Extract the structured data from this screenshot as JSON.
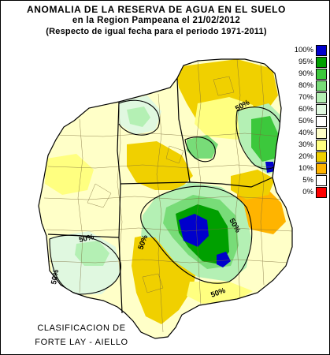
{
  "title": {
    "line1": "ANOMALIA DE LA RESERVA DE AGUA EN EL SUELO",
    "line2": "en la Region Pampeana el  21/02/2012",
    "line3": "(Respecto de igual fecha para el periodo 1971-2011)"
  },
  "legend": [
    {
      "label": "100%",
      "color": "#0000cc"
    },
    {
      "label": "95%",
      "color": "#00a000"
    },
    {
      "label": "90%",
      "color": "#3cc83c"
    },
    {
      "label": "80%",
      "color": "#78dc78"
    },
    {
      "label": "70%",
      "color": "#b4f0b4"
    },
    {
      "label": "60%",
      "color": "#e0f8e0"
    },
    {
      "label": "50%",
      "color": "#ffffff"
    },
    {
      "label": "40%",
      "color": "#ffffc8"
    },
    {
      "label": "30%",
      "color": "#ffff80"
    },
    {
      "label": "20%",
      "color": "#f0d000"
    },
    {
      "label": "10%",
      "color": "#ffb400"
    },
    {
      "label": "5%",
      "color": "#ffffff"
    },
    {
      "label": "0%",
      "color": "#ff0000"
    }
  ],
  "contour_labels": [
    "50%",
    "50%",
    "50%",
    "50%",
    "50%",
    "50%"
  ],
  "credit": {
    "line1": "CLASIFICACION DE",
    "line2": "FORTE LAY - AIELLO"
  }
}
